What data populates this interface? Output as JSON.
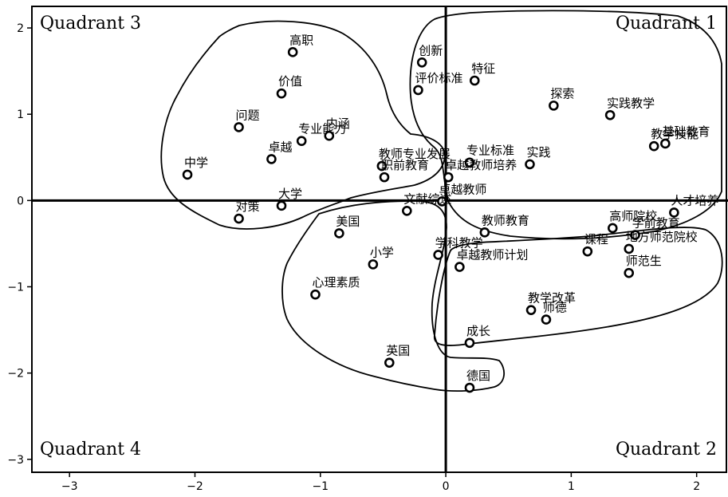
{
  "chart_data": {
    "type": "scatter",
    "title": "",
    "xlabel": "",
    "ylabel": "",
    "xlim": [
      -3.3,
      2.25
    ],
    "ylim": [
      -3.15,
      2.25
    ],
    "x_ticks": [
      -3,
      -2,
      -1,
      0,
      1,
      2
    ],
    "y_ticks": [
      -3,
      -2,
      -1,
      0,
      1,
      2
    ],
    "grid": false,
    "quadrants": [
      {
        "name": "Quadrant 1",
        "position": "top-right"
      },
      {
        "name": "Quadrant 2",
        "position": "bottom-right"
      },
      {
        "name": "Quadrant 3",
        "position": "top-left"
      },
      {
        "name": "Quadrant 4",
        "position": "bottom-left"
      }
    ],
    "points": [
      {
        "label": "高职",
        "x": -1.22,
        "y": 1.72
      },
      {
        "label": "价值",
        "x": -1.31,
        "y": 1.24
      },
      {
        "label": "问题",
        "x": -1.65,
        "y": 0.85
      },
      {
        "label": "专业能力",
        "x": -1.15,
        "y": 0.69
      },
      {
        "label": "内涵",
        "x": -0.93,
        "y": 0.75
      },
      {
        "label": "中学",
        "x": -2.06,
        "y": 0.3
      },
      {
        "label": "卓越",
        "x": -1.39,
        "y": 0.48
      },
      {
        "label": "对策",
        "x": -1.65,
        "y": -0.21
      },
      {
        "label": "大学",
        "x": -1.31,
        "y": -0.06
      },
      {
        "label": "教师专业发展",
        "x": -0.51,
        "y": 0.4
      },
      {
        "label": "职前教育",
        "x": -0.49,
        "y": 0.27
      },
      {
        "label": "卓越教师",
        "x": -0.03,
        "y": -0.01
      },
      {
        "label": "创新",
        "x": -0.19,
        "y": 1.6
      },
      {
        "label": "评价标准",
        "x": -0.22,
        "y": 1.28
      },
      {
        "label": "特征",
        "x": 0.23,
        "y": 1.39
      },
      {
        "label": "探索",
        "x": 0.86,
        "y": 1.1
      },
      {
        "label": "实践教学",
        "x": 1.31,
        "y": 0.99
      },
      {
        "label": "基础教育",
        "x": 1.75,
        "y": 0.66
      },
      {
        "label": "教学技能",
        "x": 1.66,
        "y": 0.63
      },
      {
        "label": "专业标准",
        "x": 0.19,
        "y": 0.44
      },
      {
        "label": "实践",
        "x": 0.67,
        "y": 0.42
      },
      {
        "label": "卓越教师培养",
        "x": 0.02,
        "y": 0.27
      },
      {
        "label": "人才培养",
        "x": 1.82,
        "y": -0.14
      },
      {
        "label": "高师院校",
        "x": 1.33,
        "y": -0.32
      },
      {
        "label": "课程",
        "x": 1.13,
        "y": -0.59
      },
      {
        "label": "学前教育",
        "x": 1.51,
        "y": -0.4
      },
      {
        "label": "地方师范院校",
        "x": 1.46,
        "y": -0.56
      },
      {
        "label": "师范生",
        "x": 1.46,
        "y": -0.84
      },
      {
        "label": "教师教育",
        "x": 0.31,
        "y": -0.37
      },
      {
        "label": "卓越教师计划",
        "x": 0.11,
        "y": -0.77
      },
      {
        "label": "教学改革",
        "x": 0.68,
        "y": -1.27
      },
      {
        "label": "师德",
        "x": 0.8,
        "y": -1.38
      },
      {
        "label": "成长",
        "x": 0.19,
        "y": -1.65
      },
      {
        "label": "德国",
        "x": 0.19,
        "y": -2.17
      },
      {
        "label": "美国",
        "x": -0.85,
        "y": -0.38
      },
      {
        "label": "文献综述",
        "x": -0.31,
        "y": -0.12
      },
      {
        "label": "小学",
        "x": -0.58,
        "y": -0.74
      },
      {
        "label": "学科教学",
        "x": -0.06,
        "y": -0.63
      },
      {
        "label": "心理素质",
        "x": -1.04,
        "y": -1.09
      },
      {
        "label": "英国",
        "x": -0.45,
        "y": -1.88
      }
    ]
  }
}
